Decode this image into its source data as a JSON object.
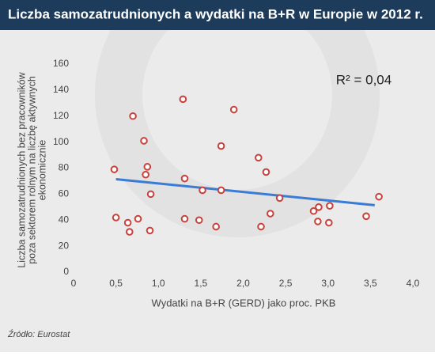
{
  "chart_data": {
    "type": "scatter",
    "title": "Liczba samozatrudnionych a wydatki na B+R w Europie w 2012 r.",
    "xlabel": "Wydatki na B+R (GERD) jako proc. PKB",
    "ylabel": [
      "Liczba samozatrudnionych bez pracowników",
      "poza sektorem rolnym na liczbę aktywnych",
      "ekonomicznie"
    ],
    "annotation": "R² = 0,04",
    "source": "Źródło: Eurostat",
    "series": [
      {
        "color": "#c8413b",
        "x": [
          0.48,
          0.5,
          0.64,
          0.66,
          0.7,
          0.76,
          0.83,
          0.87,
          0.85,
          0.91,
          0.9,
          1.29,
          1.31,
          1.31,
          1.48,
          1.52,
          1.68,
          1.74,
          1.74,
          1.89,
          2.18,
          2.27,
          2.21,
          2.32,
          2.43,
          2.83,
          2.89,
          2.88,
          3.02,
          3.01,
          3.45,
          3.6
        ],
        "values": [
          79,
          42,
          38,
          31,
          120,
          41,
          101,
          81,
          75,
          60,
          32,
          133,
          72,
          41,
          40,
          63,
          35,
          97,
          63,
          125,
          88,
          77,
          35,
          45,
          57,
          47,
          50,
          39,
          51,
          38,
          43,
          58
        ]
      }
    ],
    "trendline": {
      "color": "#3a7bd5",
      "x": [
        0.5,
        3.55
      ],
      "values": [
        71.5,
        51.5
      ]
    },
    "xlim": [
      0,
      4
    ],
    "ylim": [
      0,
      160
    ],
    "xticks": [
      0,
      {
        "value": 0.5,
        "label": "0,5"
      },
      {
        "value": 1,
        "label": "1,0"
      },
      {
        "value": 1.5,
        "label": "1,5"
      },
      {
        "value": 2,
        "label": "2,0"
      },
      {
        "value": 2.5,
        "label": "2,5"
      },
      {
        "value": 3,
        "label": "3,0"
      },
      {
        "value": 3.5,
        "label": "3,5"
      },
      {
        "value": 4,
        "label": "4,0"
      }
    ],
    "yticks": [
      0,
      20,
      40,
      60,
      80,
      100,
      120,
      140,
      160
    ],
    "grid": false
  }
}
